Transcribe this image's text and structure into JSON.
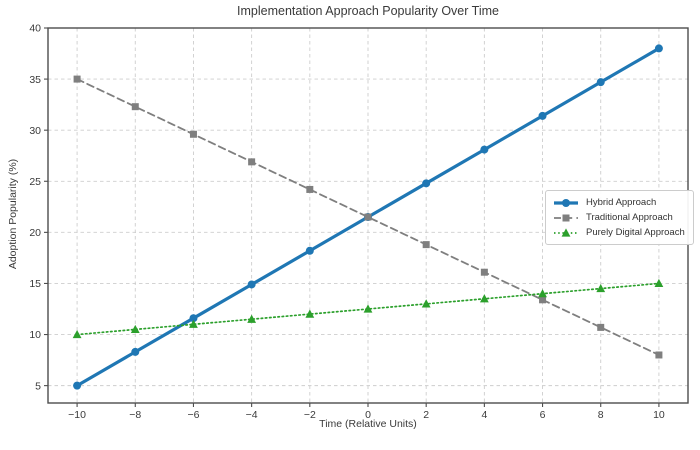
{
  "chart_data": {
    "type": "line",
    "title": "Implementation Approach Popularity Over Time",
    "xlabel": "Time (Relative Units)",
    "ylabel": "Adoption Popularity (%)",
    "xlim": [
      -11,
      11
    ],
    "ylim": [
      3.3,
      40
    ],
    "xticks": [
      -10,
      -8,
      -6,
      -4,
      -2,
      0,
      2,
      4,
      6,
      8,
      10
    ],
    "yticks": [
      5,
      10,
      15,
      20,
      25,
      30,
      35,
      40
    ],
    "grid": true,
    "legend_position": "center-right",
    "x": [
      -10,
      -8,
      -6,
      -4,
      -2,
      0,
      2,
      4,
      6,
      8,
      10
    ],
    "series": [
      {
        "name": "Hybrid Approach",
        "values": [
          5,
          8.3,
          11.6,
          14.9,
          18.2,
          21.5,
          24.8,
          28.1,
          31.4,
          34.7,
          38
        ],
        "color": "#1f77b4",
        "line_style": "solid",
        "marker": "circle",
        "line_width": 3.2
      },
      {
        "name": "Traditional Approach",
        "values": [
          35,
          32.3,
          29.6,
          26.9,
          24.2,
          21.5,
          18.8,
          16.1,
          13.4,
          10.7,
          8
        ],
        "color": "#7f7f7f",
        "line_style": "dashed",
        "marker": "square",
        "line_width": 1.8
      },
      {
        "name": "Purely Digital Approach",
        "values": [
          10,
          10.5,
          11,
          11.5,
          12,
          12.5,
          13,
          13.5,
          14,
          14.5,
          15
        ],
        "color": "#2ca02c",
        "line_style": "dotted",
        "marker": "triangle",
        "line_width": 1.7
      }
    ]
  }
}
